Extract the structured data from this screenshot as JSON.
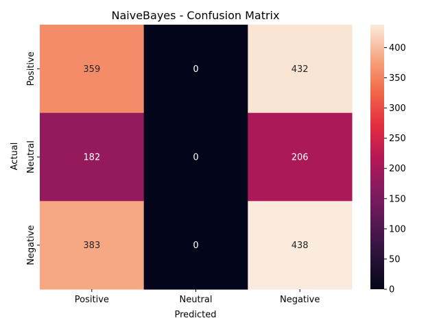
{
  "chart_data": {
    "type": "heatmap",
    "title": "NaiveBayes - Confusion Matrix",
    "xlabel": "Predicted",
    "ylabel": "Actual",
    "x_categories": [
      "Positive",
      "Neutral",
      "Negative"
    ],
    "y_categories": [
      "Positive",
      "Neutral",
      "Negative"
    ],
    "values": [
      [
        359,
        0,
        432
      ],
      [
        182,
        0,
        206
      ],
      [
        383,
        0,
        438
      ]
    ],
    "colorbar": {
      "range": [
        0,
        438
      ],
      "ticks": [
        "0",
        "50",
        "100",
        "150",
        "200",
        "250",
        "300",
        "350",
        "400"
      ],
      "colormap": "rocket"
    },
    "grid": false
  }
}
